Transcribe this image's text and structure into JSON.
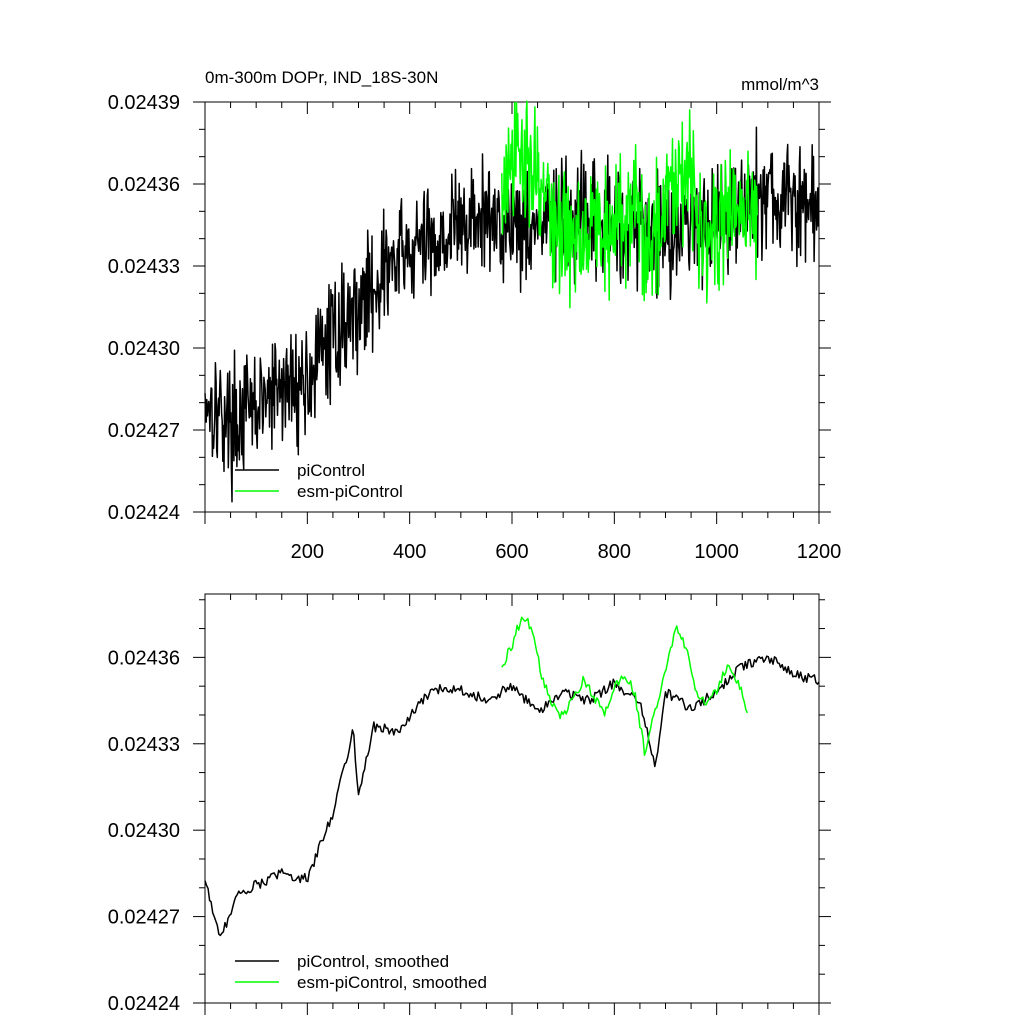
{
  "chart_data": [
    {
      "type": "line",
      "title": "0m-300m DOPr, IND_18S-30N",
      "units": "mmol/m^3",
      "xlabel": "",
      "ylabel": "",
      "xlim": [
        0,
        1200
      ],
      "ylim": [
        0.02424,
        0.02439
      ],
      "xticks": [
        200,
        400,
        600,
        800,
        1000,
        1200
      ],
      "yticks": [
        0.02424,
        0.02427,
        0.0243,
        0.02433,
        0.02436,
        0.02439
      ],
      "ytick_labels": [
        "0.02424",
        "0.02427",
        "0.02430",
        "0.02433",
        "0.02436",
        "0.02439"
      ],
      "legend_position": "bottom-left",
      "series": [
        {
          "name": "piControl",
          "color": "#000000",
          "x": [
            0,
            50,
            100,
            150,
            200,
            250,
            300,
            350,
            400,
            450,
            500,
            550,
            600,
            650,
            700,
            750,
            800,
            850,
            900,
            950,
            1000,
            1050,
            1100,
            1150,
            1200
          ],
          "values": [
            0.024283,
            0.024272,
            0.024278,
            0.024285,
            0.024288,
            0.024305,
            0.024315,
            0.024328,
            0.024335,
            0.02434,
            0.024345,
            0.024347,
            0.024346,
            0.024345,
            0.024346,
            0.024344,
            0.024347,
            0.024345,
            0.024342,
            0.024346,
            0.024349,
            0.024352,
            0.024356,
            0.024352,
            0.024351
          ],
          "noise_amplitude": 2.2e-05
        },
        {
          "name": "esm-piControl",
          "color": "#00ff00",
          "x": [
            580,
            600,
            620,
            640,
            660,
            680,
            700,
            720,
            740,
            760,
            780,
            800,
            820,
            840,
            860,
            880,
            900,
            920,
            940,
            960,
            980,
            1000,
            1020,
            1040,
            1060,
            1080
          ],
          "values": [
            0.024355,
            0.024364,
            0.024371,
            0.02437,
            0.024358,
            0.024345,
            0.024342,
            0.024338,
            0.024346,
            0.024349,
            0.024341,
            0.024343,
            0.024351,
            0.02435,
            0.024336,
            0.024344,
            0.024355,
            0.024366,
            0.024368,
            0.024351,
            0.024346,
            0.024342,
            0.024349,
            0.024352,
            0.024347,
            0.024354
          ],
          "noise_amplitude": 2.5e-05
        }
      ]
    },
    {
      "type": "line",
      "title": "",
      "xlabel": "",
      "ylabel": "",
      "xlim": [
        0,
        1200
      ],
      "ylim": [
        0.02424,
        0.024382
      ],
      "yticks": [
        0.02424,
        0.02427,
        0.0243,
        0.02433,
        0.02436
      ],
      "ytick_labels": [
        "0.02424",
        "0.02427",
        "0.02430",
        "0.02433",
        "0.02436"
      ],
      "legend_position": "bottom-left",
      "series": [
        {
          "name": "piControl, smoothed",
          "color": "#000000",
          "x": [
            0,
            30,
            60,
            100,
            150,
            200,
            250,
            290,
            300,
            330,
            380,
            420,
            450,
            500,
            550,
            600,
            650,
            700,
            750,
            800,
            850,
            880,
            900,
            950,
            1000,
            1050,
            1100,
            1150,
            1200
          ],
          "values": [
            0.024283,
            0.024262,
            0.024277,
            0.024281,
            0.024285,
            0.024283,
            0.024306,
            0.024335,
            0.024312,
            0.024336,
            0.024334,
            0.024344,
            0.024349,
            0.024349,
            0.024345,
            0.02435,
            0.024341,
            0.024348,
            0.024345,
            0.024351,
            0.024344,
            0.024322,
            0.024348,
            0.024342,
            0.024348,
            0.024357,
            0.02436,
            0.024354,
            0.024352
          ]
        },
        {
          "name": "esm-piControl, smoothed",
          "color": "#00ff00",
          "x": [
            580,
            600,
            620,
            640,
            660,
            680,
            700,
            720,
            740,
            760,
            780,
            800,
            820,
            840,
            860,
            880,
            900,
            920,
            940,
            960,
            980,
            1000,
            1020,
            1040,
            1060
          ],
          "values": [
            0.024357,
            0.024364,
            0.024375,
            0.02437,
            0.024352,
            0.024344,
            0.024339,
            0.024346,
            0.024352,
            0.024346,
            0.02434,
            0.024349,
            0.024354,
            0.024348,
            0.024326,
            0.024342,
            0.024356,
            0.02437,
            0.024364,
            0.024347,
            0.024345,
            0.024348,
            0.024357,
            0.024352,
            0.024342
          ]
        }
      ]
    }
  ]
}
